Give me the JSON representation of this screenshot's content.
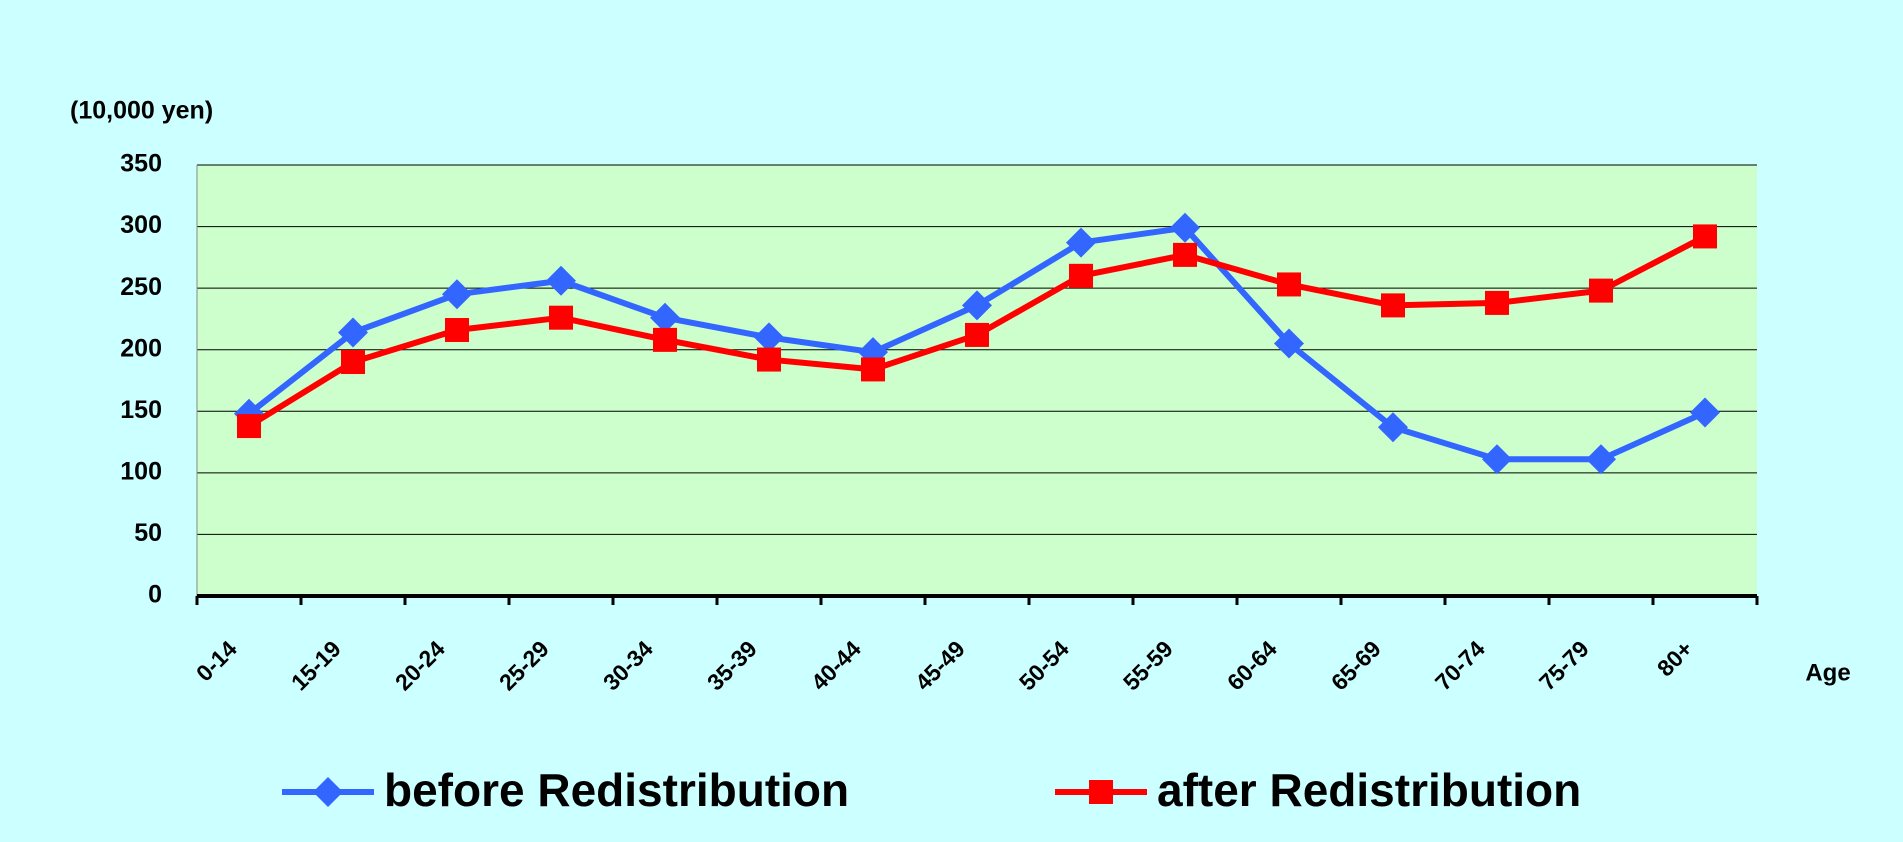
{
  "chart_data": {
    "type": "line",
    "y_axis_label": "(10,000 yen)",
    "x_axis_label": "Age",
    "categories": [
      "0-14",
      "15-19",
      "20-24",
      "25-29",
      "30-34",
      "35-39",
      "40-44",
      "45-49",
      "50-54",
      "55-59",
      "60-64",
      "65-69",
      "70-74",
      "75-79",
      "80+"
    ],
    "series": [
      {
        "name": "before Redistribution",
        "color": "#3366ff",
        "marker": "diamond",
        "values": [
          148,
          214,
          245,
          256,
          226,
          210,
          198,
          236,
          287,
          299,
          205,
          137,
          111,
          111,
          149
        ]
      },
      {
        "name": "after Redistribution",
        "color": "#ff0000",
        "marker": "square",
        "values": [
          138,
          190,
          216,
          226,
          208,
          192,
          184,
          212,
          260,
          277,
          253,
          236,
          238,
          248,
          292
        ]
      }
    ],
    "ylim": [
      0,
      350
    ],
    "yticks": [
      0,
      50,
      100,
      150,
      200,
      250,
      300,
      350
    ],
    "grid": true
  }
}
